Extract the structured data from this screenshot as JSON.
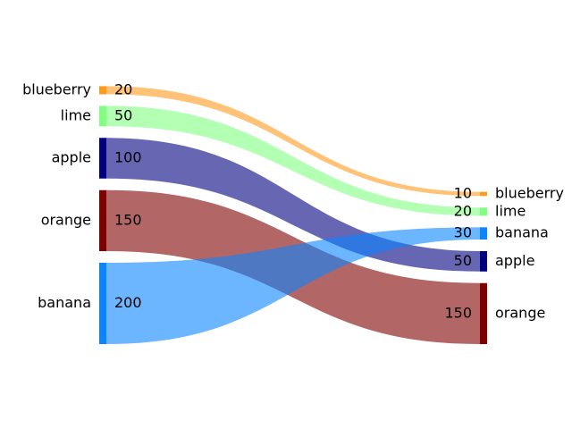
{
  "chart_data": {
    "type": "sankey",
    "left": [
      {
        "name": "blueberry",
        "value": 20,
        "color": "#ff9a1a"
      },
      {
        "name": "lime",
        "value": 50,
        "color": "#80ff80"
      },
      {
        "name": "apple",
        "value": 100,
        "color": "#000080"
      },
      {
        "name": "orange",
        "value": 150,
        "color": "#800000"
      },
      {
        "name": "banana",
        "value": 200,
        "color": "#0a84ff"
      }
    ],
    "right": [
      {
        "name": "blueberry",
        "value": 10,
        "color": "#ff9a1a"
      },
      {
        "name": "lime",
        "value": 20,
        "color": "#80ff80"
      },
      {
        "name": "banana",
        "value": 30,
        "color": "#0a84ff"
      },
      {
        "name": "apple",
        "value": 50,
        "color": "#000080"
      },
      {
        "name": "orange",
        "value": 150,
        "color": "#800000"
      }
    ]
  }
}
